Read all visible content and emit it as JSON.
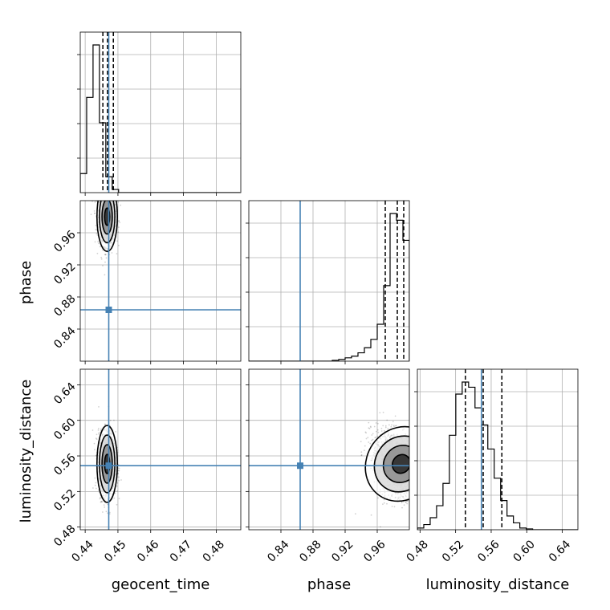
{
  "chart_data": {
    "type": "corner",
    "parameters": [
      "geocent_time",
      "phase",
      "luminosity_distance"
    ],
    "ranges": {
      "geocent_time": [
        0.4385,
        0.4875
      ],
      "phase": [
        0.8,
        1.0
      ],
      "luminosity_distance": [
        0.477,
        0.6575
      ]
    },
    "ticks": {
      "geocent_time": [
        0.44,
        0.45,
        0.46,
        0.47,
        0.48
      ],
      "phase": [
        0.84,
        0.88,
        0.92,
        0.96
      ],
      "luminosity_distance": [
        0.48,
        0.52,
        0.56,
        0.6,
        0.64
      ]
    },
    "tick_labels": {
      "geocent_time": [
        "0.44",
        "0.45",
        "0.46",
        "0.47",
        "0.48"
      ],
      "phase": [
        "0.84",
        "0.88",
        "0.92",
        "0.96"
      ],
      "luminosity_distance": [
        "0.48",
        "0.52",
        "0.56",
        "0.60",
        "0.64"
      ]
    },
    "truths": {
      "geocent_time": 0.4472,
      "phase": 0.864,
      "luminosity_distance": 0.549
    },
    "quantiles": {
      "geocent_time": [
        0.4454,
        0.4468,
        0.4486
      ],
      "phase": [
        0.97,
        0.985,
        0.993
      ],
      "luminosity_distance": [
        0.531,
        0.551,
        0.572
      ]
    },
    "histograms": {
      "geocent_time": {
        "edges": [
          0.4385,
          0.44045,
          0.4424,
          0.44435,
          0.4463,
          0.44825,
          0.4502,
          0.45215,
          0.4541,
          0.45605,
          0.458,
          0.45995,
          0.4619,
          0.46385,
          0.4658,
          0.46775,
          0.4697,
          0.47165,
          0.4736,
          0.47555,
          0.4775,
          0.47945,
          0.4814,
          0.48335,
          0.4853,
          0.48725
        ],
        "counts": [
          0.12,
          0.6,
          0.93,
          0.44,
          0.1,
          0.02,
          0,
          0,
          0,
          0,
          0,
          0,
          0,
          0,
          0,
          0,
          0,
          0,
          0,
          0,
          0,
          0,
          0,
          0,
          0
        ]
      },
      "phase": {
        "edges": [
          0.8,
          0.808,
          0.816,
          0.824,
          0.832,
          0.84,
          0.848,
          0.856,
          0.864,
          0.872,
          0.88,
          0.888,
          0.896,
          0.904,
          0.912,
          0.92,
          0.928,
          0.936,
          0.944,
          0.952,
          0.96,
          0.968,
          0.976,
          0.984,
          0.992,
          1.0
        ],
        "counts": [
          0,
          0,
          0,
          0,
          0,
          0,
          0,
          0,
          0,
          0,
          0,
          0,
          0,
          0.005,
          0.01,
          0.02,
          0.03,
          0.05,
          0.08,
          0.13,
          0.22,
          0.45,
          0.88,
          0.84,
          0.72
        ]
      },
      "luminosity_distance": {
        "edges": [
          0.477,
          0.4842,
          0.4914,
          0.4986,
          0.5058,
          0.513,
          0.5202,
          0.5274,
          0.5346,
          0.5418,
          0.549,
          0.5562,
          0.5634,
          0.5706,
          0.5778,
          0.585,
          0.5922,
          0.5994,
          0.6066,
          0.6138,
          0.621,
          0.6282,
          0.6354,
          0.6426,
          0.6498,
          0.657
        ],
        "counts": [
          0.01,
          0.03,
          0.07,
          0.14,
          0.27,
          0.55,
          0.79,
          0.86,
          0.83,
          0.71,
          0.61,
          0.47,
          0.3,
          0.17,
          0.08,
          0.04,
          0.01,
          0.005,
          0,
          0,
          0,
          0,
          0,
          0,
          0
        ]
      }
    },
    "samples_2d": [
      {
        "x": "geocent_time",
        "y": "phase",
        "mean": [
          0.4467,
          0.98
        ],
        "sd": [
          0.0013,
          0.018
        ],
        "clip_y_max": 1.0
      },
      {
        "x": "geocent_time",
        "y": "luminosity_distance",
        "mean": [
          0.4467,
          0.551
        ],
        "sd": [
          0.0013,
          0.018
        ]
      },
      {
        "x": "phase",
        "y": "luminosity_distance",
        "mean": [
          0.99,
          0.551
        ],
        "sd": [
          0.018,
          0.018
        ],
        "corr": -0.55,
        "clip_x_max": 1.0
      }
    ],
    "grid": true,
    "truth_color": "#4682b4",
    "hist_color": "#000000",
    "title": "",
    "legend": ""
  }
}
